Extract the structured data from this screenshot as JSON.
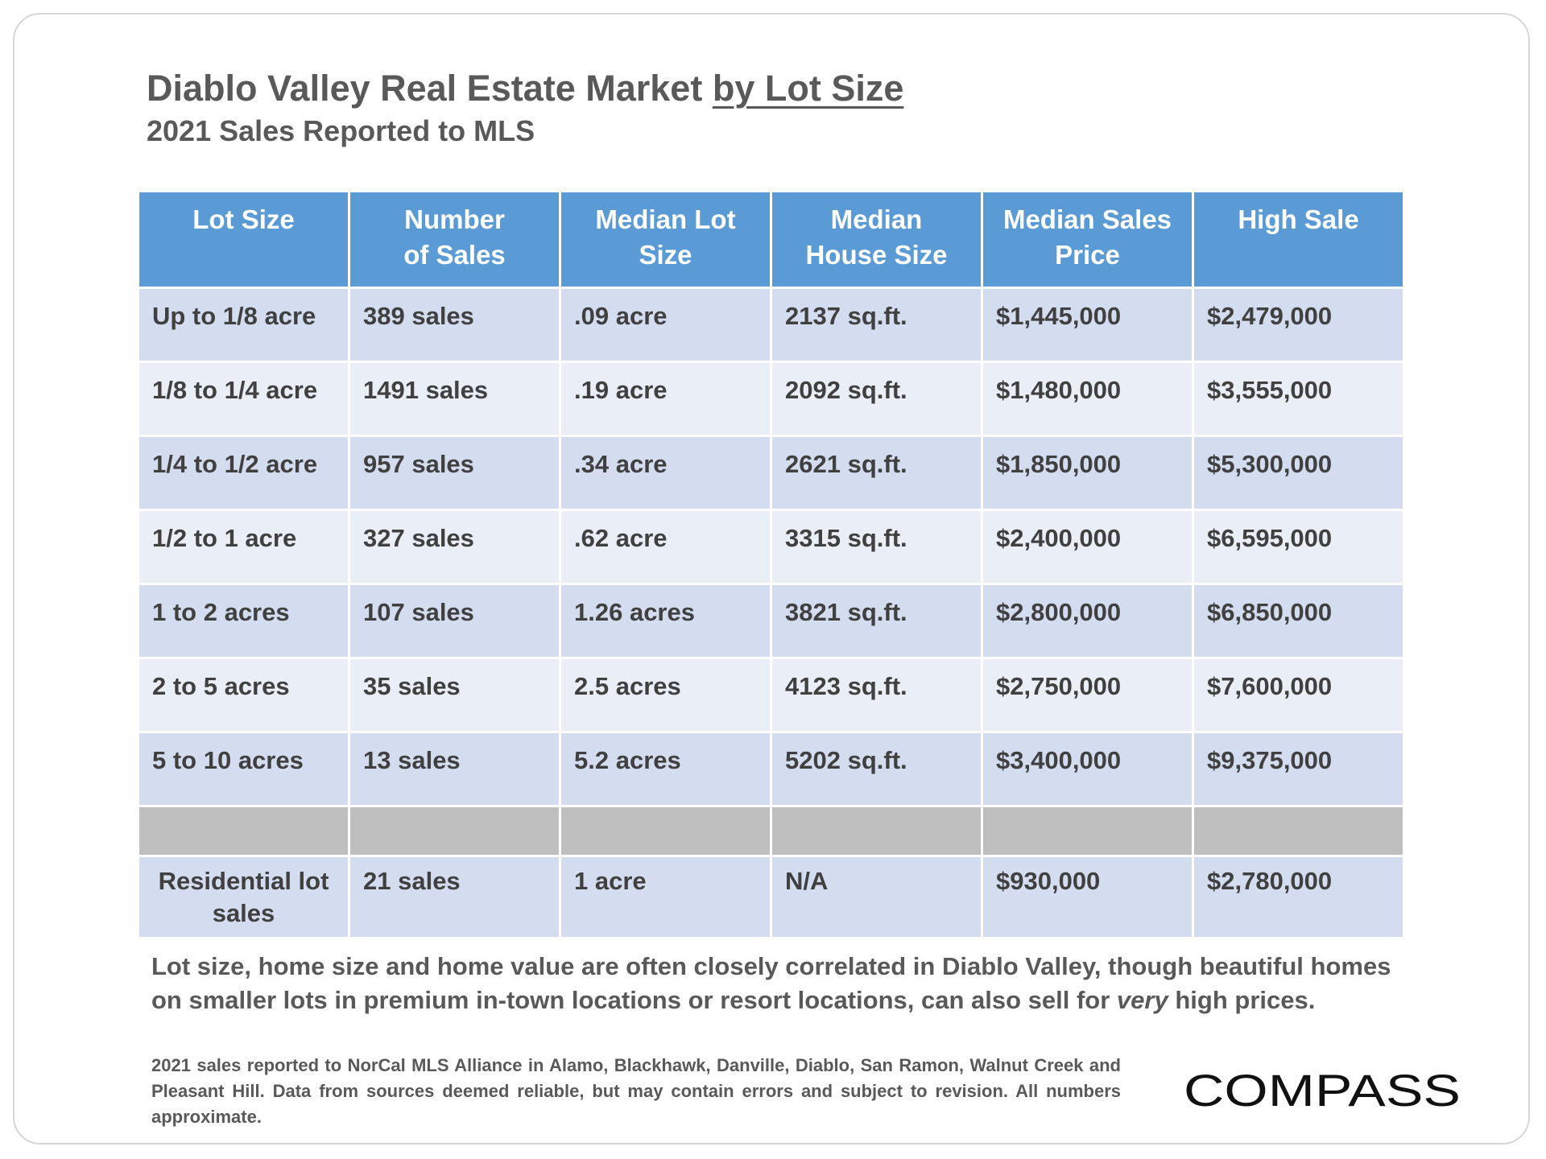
{
  "title": {
    "main": "Diablo Valley Real Estate Market",
    "underlined": "by Lot Size",
    "subtitle": "2021 Sales Reported to MLS"
  },
  "table": {
    "headers": [
      {
        "line1": "Lot Size",
        "line2": ""
      },
      {
        "line1": "Number",
        "line2": "of Sales"
      },
      {
        "line1": "Median Lot",
        "line2": "Size"
      },
      {
        "line1": "Median",
        "line2": "House Size"
      },
      {
        "line1": "Median Sales",
        "line2": "Price"
      },
      {
        "line1": "High Sale",
        "line2": ""
      }
    ],
    "rows": [
      [
        "Up to 1/8 acre",
        "389 sales",
        ".09 acre",
        "2137 sq.ft.",
        "$1,445,000",
        "$2,479,000"
      ],
      [
        "1/8 to 1/4 acre",
        "1491 sales",
        ".19 acre",
        "2092 sq.ft.",
        "$1,480,000",
        "$3,555,000"
      ],
      [
        "1/4 to 1/2 acre",
        "957 sales",
        ".34 acre",
        "2621 sq.ft.",
        "$1,850,000",
        "$5,300,000"
      ],
      [
        "1/2 to 1 acre",
        "327 sales",
        ".62 acre",
        "3315 sq.ft.",
        "$2,400,000",
        "$6,595,000"
      ],
      [
        "1 to 2 acres",
        "107 sales",
        "1.26 acres",
        "3821 sq.ft.",
        "$2,800,000",
        "$6,850,000"
      ],
      [
        "2 to 5 acres",
        "35 sales",
        "2.5 acres",
        "4123 sq.ft.",
        "$2,750,000",
        "$7,600,000"
      ],
      [
        "5 to 10 acres",
        "13 sales",
        "5.2 acres",
        "5202 sq.ft.",
        "$3,400,000",
        "$9,375,000"
      ]
    ],
    "residential_row": {
      "label_line1": "Residential lot",
      "label_line2": "sales",
      "values": [
        "21 sales",
        "1 acre",
        "N/A",
        "$930,000",
        "$2,780,000"
      ]
    }
  },
  "note": {
    "before_emphasis": "Lot size, home size and home value are often closely correlated in Diablo Valley, though beautiful homes on smaller lots in premium in-town locations or resort locations, can also sell for",
    "emphasis": "very",
    "after_emphasis": "high prices."
  },
  "source": "2021 sales reported to NorCal MLS Alliance in Alamo, Blackhawk, Danville, Diablo, San Ramon, Walnut Creek and Pleasant Hill. Data from sources deemed reliable, but may contain errors and subject to revision. All numbers approximate.",
  "logo": {
    "text": "COMPASS"
  },
  "colors": {
    "header_blue": "#5b9bd5",
    "row_dark": "#d3ddef",
    "row_light": "#e9eef7",
    "spacer_gray": "#bfbfbf",
    "text_gray": "#595959",
    "cell_text": "#404040"
  }
}
